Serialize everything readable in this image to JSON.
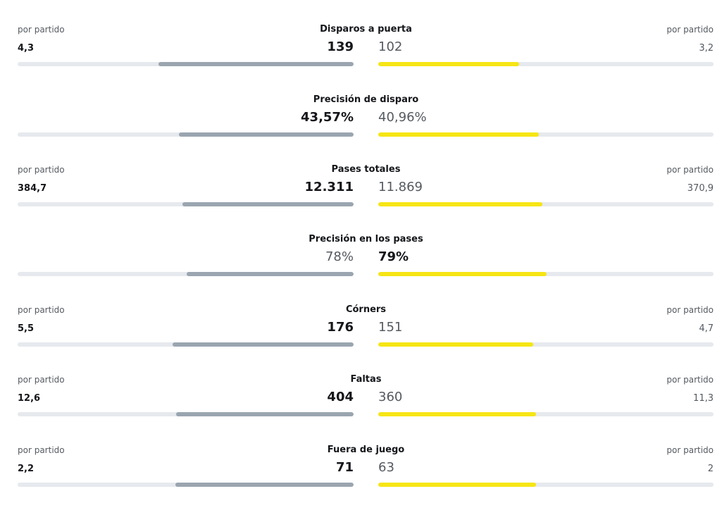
{
  "per_match_label": "por partido",
  "stats": [
    {
      "title": "Disparos a puerta",
      "home_value": "139",
      "away_value": "102",
      "home_avg": "4,3",
      "away_avg": "3,2",
      "home_bold": true,
      "away_bold": false,
      "home_share": 0.58,
      "away_share": 0.42
    },
    {
      "title": "Precisión de disparo",
      "home_value": "43,57%",
      "away_value": "40,96%",
      "home_bold": true,
      "away_bold": false,
      "home_share": 0.52,
      "away_share": 0.48
    },
    {
      "title": "Pases totales",
      "home_value": "12.311",
      "away_value": "11.869",
      "home_avg": "384,7",
      "away_avg": "370,9",
      "home_bold": true,
      "away_bold": false,
      "home_share": 0.51,
      "away_share": 0.49
    },
    {
      "title": "Precisión en los pases",
      "home_value": "78%",
      "away_value": "79%",
      "home_bold": false,
      "away_bold": true,
      "home_share": 0.497,
      "away_share": 0.503
    },
    {
      "title": "Córners",
      "home_value": "176",
      "away_value": "151",
      "home_avg": "5,5",
      "away_avg": "4,7",
      "home_bold": true,
      "away_bold": false,
      "home_share": 0.538,
      "away_share": 0.462
    },
    {
      "title": "Faltas",
      "home_value": "404",
      "away_value": "360",
      "home_avg": "12,6",
      "away_avg": "11,3",
      "home_bold": true,
      "away_bold": false,
      "home_share": 0.529,
      "away_share": 0.471
    },
    {
      "title": "Fuera de juego",
      "home_value": "71",
      "away_value": "63",
      "home_avg": "2,2",
      "away_avg": "2",
      "home_bold": true,
      "away_bold": false,
      "home_share": 0.53,
      "away_share": 0.47
    }
  ],
  "colors": {
    "home_bar": "#9aa5b0",
    "away_bar": "#f6e514",
    "track": "#e6e9ed"
  }
}
